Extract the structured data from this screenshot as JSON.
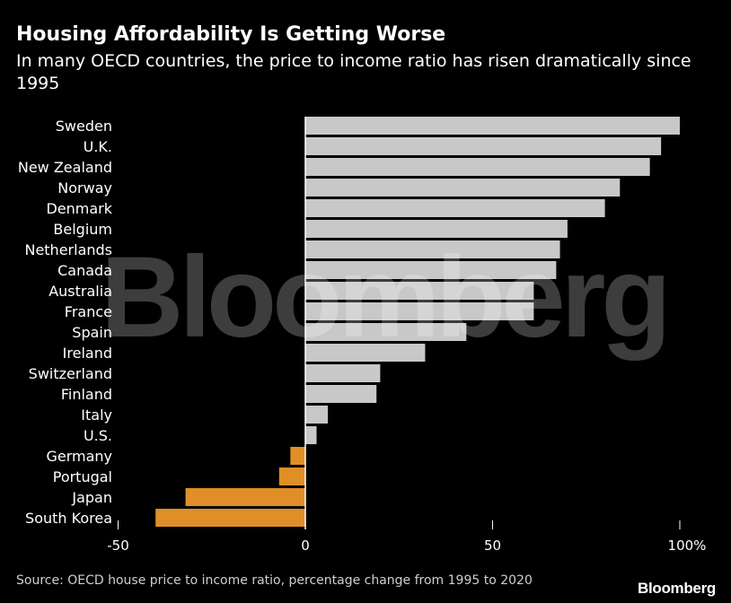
{
  "title": "Housing Affordability Is Getting Worse",
  "subtitle": "In many OECD countries, the price to income ratio has risen dramatically since 1995",
  "source": "Source: OECD house price to income ratio, percentage change from 1995 to 2020",
  "brand": "Bloomberg",
  "watermark": "Bloomberg",
  "colors": {
    "positive": "#c8c8c8",
    "negative": "#e08e27",
    "background": "#000000",
    "zero_line": "#ffffff"
  },
  "chart_data": {
    "type": "bar",
    "orientation": "horizontal",
    "title": "Housing Affordability Is Getting Worse",
    "subtitle": "In many OECD countries, the price to income ratio has risen dramatically since 1995",
    "unit": "%",
    "categories": [
      "Sweden",
      "U.K.",
      "New Zealand",
      "Norway",
      "Denmark",
      "Belgium",
      "Netherlands",
      "Canada",
      "Australia",
      "France",
      "Spain",
      "Ireland",
      "Switzerland",
      "Finland",
      "Italy",
      "U.S.",
      "Germany",
      "Portugal",
      "Japan",
      "South Korea"
    ],
    "values": [
      100,
      95,
      92,
      84,
      80,
      70,
      68,
      67,
      61,
      61,
      43,
      32,
      20,
      19,
      6,
      3,
      -4,
      -7,
      -32,
      -40
    ],
    "xlim": [
      -50,
      100
    ],
    "xticks": [
      -50,
      0,
      50,
      100
    ],
    "xtick_labels": [
      "-50",
      "0",
      "50",
      "100%"
    ],
    "grid": false,
    "legend": "none"
  }
}
